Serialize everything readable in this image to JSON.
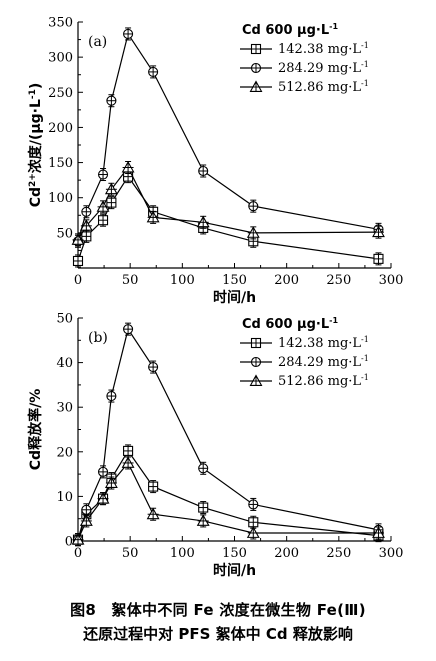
{
  "chart_data": [
    {
      "type": "line",
      "panel_label": "(a)",
      "xlabel": "时间/h",
      "ylabel": "Cd²⁺浓度/(μg·L⁻¹)",
      "ylabel_parts": {
        "base": "Cd",
        "sup": "2+",
        "rest": "浓度/(μg·L",
        "sup2": "-1",
        "close": ")"
      },
      "xlim": [
        0,
        300
      ],
      "ylim": [
        0,
        350
      ],
      "xticks": [
        "0",
        "50",
        "100",
        "150",
        "200",
        "250",
        "300"
      ],
      "yticks": [
        "50",
        "100",
        "150",
        "200",
        "250",
        "300",
        "350"
      ],
      "legend_title": "Cd 600 μg·L⁻¹",
      "legend_title_parts": {
        "base": "Cd 600 μg·L",
        "sup": "-1"
      },
      "legend_position": "top-right",
      "grid": false,
      "series": [
        {
          "name": "142.38 mg·L⁻¹",
          "name_base": "142.38 mg·L",
          "name_sup": "-1",
          "marker": "square",
          "x": [
            0,
            8,
            24,
            32,
            48,
            72,
            120,
            168,
            288
          ],
          "y": [
            10,
            45,
            68,
            93,
            130,
            80,
            57,
            38,
            13
          ]
        },
        {
          "name": "284.29 mg·L⁻¹",
          "name_base": "284.29 mg·L",
          "name_sup": "-1",
          "marker": "circle",
          "x": [
            0,
            8,
            24,
            32,
            48,
            72,
            120,
            168,
            288
          ],
          "y": [
            38,
            80,
            133,
            238,
            333,
            279,
            138,
            88,
            55
          ]
        },
        {
          "name": "512.86 mg·L⁻¹",
          "name_base": "512.86 mg·L",
          "name_sup": "-1",
          "marker": "triangle",
          "x": [
            0,
            8,
            24,
            32,
            48,
            72,
            120,
            168,
            288
          ],
          "y": [
            40,
            60,
            87,
            112,
            143,
            72,
            65,
            50,
            51
          ]
        }
      ]
    },
    {
      "type": "line",
      "panel_label": "(b)",
      "xlabel": "时间/h",
      "ylabel": "Cd释放率/%",
      "xlim": [
        0,
        300
      ],
      "ylim": [
        0,
        50
      ],
      "xticks": [
        "0",
        "50",
        "100",
        "150",
        "200",
        "250",
        "300"
      ],
      "yticks": [
        "0",
        "10",
        "20",
        "30",
        "40",
        "50"
      ],
      "legend_title": "Cd 600 μg·L⁻¹",
      "legend_title_parts": {
        "base": "Cd 600 μg·L",
        "sup": "-1"
      },
      "legend_position": "top-right",
      "grid": false,
      "series": [
        {
          "name": "142.38 mg·L⁻¹",
          "name_base": "142.38 mg·L",
          "name_sup": "-1",
          "marker": "square",
          "x": [
            0,
            8,
            24,
            32,
            48,
            72,
            120,
            168,
            288
          ],
          "y": [
            0.3,
            6,
            9.5,
            14,
            20.2,
            12.2,
            7.5,
            4.2,
            1.2
          ]
        },
        {
          "name": "284.29 mg·L⁻¹",
          "name_base": "284.29 mg·L",
          "name_sup": "-1",
          "marker": "circle",
          "x": [
            0,
            8,
            24,
            32,
            48,
            72,
            120,
            168,
            288
          ],
          "y": [
            0.3,
            7,
            15.5,
            32.5,
            47.5,
            39,
            16.3,
            8.2,
            2.5
          ]
        },
        {
          "name": "512.86 mg·L⁻¹",
          "name_base": "512.86 mg·L",
          "name_sup": "-1",
          "marker": "triangle",
          "x": [
            0,
            8,
            24,
            32,
            48,
            72,
            120,
            168,
            288
          ],
          "y": [
            0.3,
            4.5,
            9.5,
            13,
            17.5,
            6,
            4.5,
            1.8,
            1.8
          ]
        }
      ]
    }
  ],
  "caption": {
    "line1": "图8　絮体中不同 Fe 浓度在微生物 Fe(Ⅲ)",
    "line2": "还原过程中对 PFS 絮体中 Cd 释放影响"
  }
}
